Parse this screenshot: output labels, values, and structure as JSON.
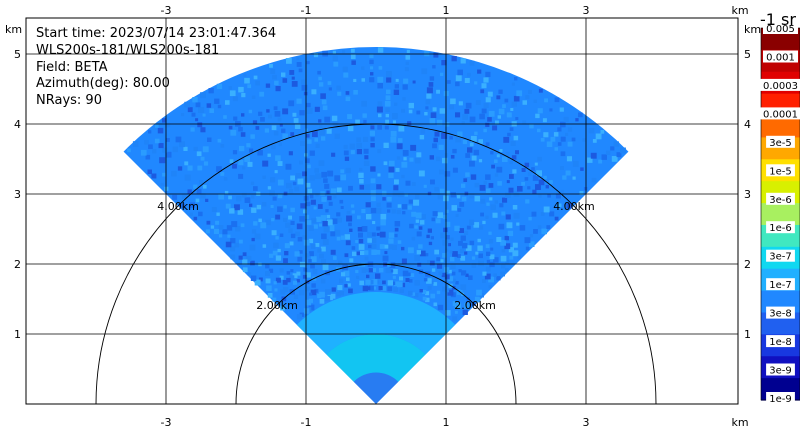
{
  "chart_data": {
    "type": "heatmap",
    "projection": "RHI sector, azimuth view",
    "info": {
      "start_time": "Start time: 2023/07/14 23:01:47.364",
      "instrument": "WLS200s-181/WLS200s-181",
      "field": "Field: BETA",
      "azimuth": "Azimuth(deg): 80.00",
      "nrays": "NRays: 90"
    },
    "x_unit": "km",
    "y_unit": "km",
    "x_ticks": [
      -3,
      -1,
      1,
      3
    ],
    "y_ticks": [
      1,
      2,
      3,
      4,
      5
    ],
    "xlim": [
      -5.1,
      5.1
    ],
    "ylim": [
      0,
      5.3
    ],
    "grid": true,
    "sector": {
      "elevation_deg_from": 45,
      "elevation_deg_to": 135,
      "max_range_km": 5.1,
      "rays": 90
    },
    "range_rings": [
      {
        "radius_km": 2,
        "label": "2.00km"
      },
      {
        "radius_km": 4,
        "label": "4.00km"
      }
    ],
    "colorbar": {
      "unit": "-1 sr",
      "labels": [
        "0.005",
        "0.001",
        "0.0003",
        "0.0001",
        "3e-5",
        "1e-5",
        "3e-6",
        "1e-6",
        "3e-7",
        "1e-7",
        "3e-8",
        "1e-8",
        "3e-9",
        "1e-9"
      ],
      "colors": [
        "#8a0000",
        "#c00000",
        "#e00000",
        "#ff2000",
        "#ff6a00",
        "#ffa800",
        "#ffe000",
        "#d8f000",
        "#a8f060",
        "#40e8c0",
        "#10d8f0",
        "#20b0ff",
        "#2088ff",
        "#2060f0",
        "#1838e0",
        "#1010c0",
        "#000090"
      ]
    },
    "data_summary": [
      {
        "range_km": [
          0,
          0.4
        ],
        "value": "3e-8"
      },
      {
        "range_km": [
          0.4,
          1.6
        ],
        "value": "1e-7"
      },
      {
        "range_km": [
          1.6,
          5.1
        ],
        "value": "3e-8"
      }
    ]
  }
}
